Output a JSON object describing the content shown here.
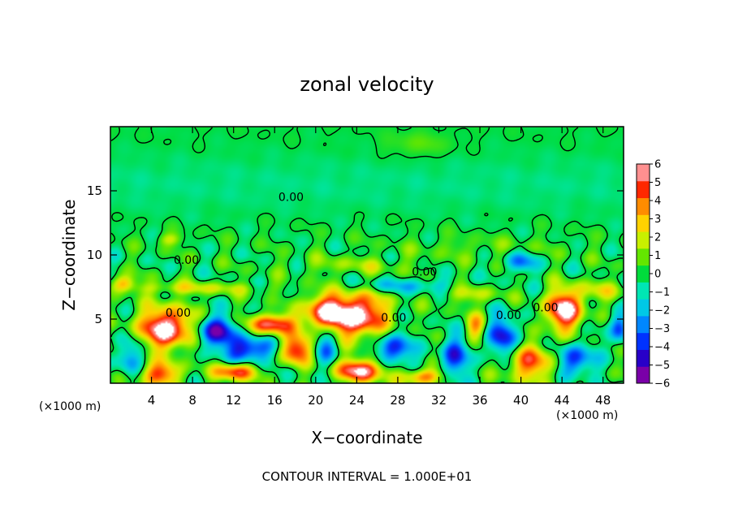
{
  "chart_data": {
    "type": "heatmap",
    "title": "zonal velocity",
    "xlabel": "X−coordinate",
    "ylabel": "Z−coordinate",
    "x_unit_label_left": "(×1000 m)",
    "x_unit_label_right": "(×1000 m)",
    "xlim": [
      0,
      50
    ],
    "ylim": [
      0,
      20
    ],
    "x_ticks": [
      4,
      8,
      12,
      16,
      20,
      24,
      28,
      32,
      36,
      40,
      44,
      48
    ],
    "x_tick_labels": [
      "4",
      "8",
      "12",
      "16",
      "20",
      "24",
      "28",
      "32",
      "36",
      "40",
      "44",
      "48"
    ],
    "y_ticks": [
      5,
      10,
      15
    ],
    "y_tick_labels": [
      "5",
      "10",
      "15"
    ],
    "colorbar": {
      "min": -6,
      "max": 6,
      "tick_values": [
        6,
        5,
        4,
        3,
        2,
        1,
        0,
        -1,
        -2,
        -3,
        -4,
        -5,
        -6
      ],
      "tick_labels": [
        "6",
        "5",
        "4",
        "3",
        "2",
        "1",
        "0",
        "−1",
        "−2",
        "−3",
        "−4",
        "−5",
        "−6"
      ],
      "colors": [
        "#7a00a8",
        "#2800c8",
        "#0032ff",
        "#0087ff",
        "#00c8e6",
        "#00e6b4",
        "#00dc3c",
        "#64e600",
        "#c8f000",
        "#ffd200",
        "#ff8c00",
        "#ff2800",
        "#ff9090"
      ]
    },
    "contour_labels": [
      {
        "text": "0.00",
        "x": 17.6,
        "y": 14.2
      },
      {
        "text": "0.00",
        "x": 7.4,
        "y": 9.3
      },
      {
        "text": "0.00",
        "x": 30.6,
        "y": 8.4
      },
      {
        "text": "0.00",
        "x": 6.6,
        "y": 5.2
      },
      {
        "text": "0.00",
        "x": 27.6,
        "y": 4.8
      },
      {
        "text": "0.00",
        "x": 38.8,
        "y": 5.0
      },
      {
        "text": "0.00",
        "x": 42.4,
        "y": 5.6
      }
    ],
    "features": [
      {
        "x": 5.5,
        "y": 4.3,
        "sx": 2.8,
        "sy": 1.6,
        "v": 7.0
      },
      {
        "x": 23.8,
        "y": 5.3,
        "sx": 3.0,
        "sy": 1.7,
        "v": 7.5
      },
      {
        "x": 20.6,
        "y": 5.5,
        "sx": 1.8,
        "sy": 1.4,
        "v": 4.5
      },
      {
        "x": 15.8,
        "y": 4.6,
        "sx": 2.2,
        "sy": 0.8,
        "v": 6.0
      },
      {
        "x": 18.2,
        "y": 2.6,
        "sx": 1.6,
        "sy": 1.1,
        "v": 5.5
      },
      {
        "x": 24.4,
        "y": 1.0,
        "sx": 2.4,
        "sy": 0.9,
        "v": 6.5
      },
      {
        "x": 12.2,
        "y": 0.9,
        "sx": 2.0,
        "sy": 0.7,
        "v": 5.5
      },
      {
        "x": 4.8,
        "y": 0.7,
        "sx": 2.0,
        "sy": 0.9,
        "v": 5.0
      },
      {
        "x": 30.5,
        "y": 0.5,
        "sx": 2.0,
        "sy": 0.6,
        "v": 4.5
      },
      {
        "x": 44.2,
        "y": 5.7,
        "sx": 1.8,
        "sy": 1.5,
        "v": 7.0
      },
      {
        "x": 41.0,
        "y": 1.6,
        "sx": 2.6,
        "sy": 1.4,
        "v": 4.5
      },
      {
        "x": 35.6,
        "y": 4.4,
        "sx": 1.0,
        "sy": 1.0,
        "v": 3.5
      },
      {
        "x": 10.2,
        "y": 4.0,
        "sx": 2.0,
        "sy": 1.2,
        "v": -5.5
      },
      {
        "x": 13.5,
        "y": 2.6,
        "sx": 2.2,
        "sy": 1.0,
        "v": -5.0
      },
      {
        "x": 21.0,
        "y": 3.1,
        "sx": 1.2,
        "sy": 1.6,
        "v": -3.5
      },
      {
        "x": 27.6,
        "y": 2.6,
        "sx": 1.8,
        "sy": 1.2,
        "v": -4.5
      },
      {
        "x": 33.6,
        "y": 2.0,
        "sx": 1.4,
        "sy": 1.6,
        "v": -4.0
      },
      {
        "x": 38.2,
        "y": 3.6,
        "sx": 1.5,
        "sy": 1.6,
        "v": -4.5
      },
      {
        "x": 45.2,
        "y": 1.8,
        "sx": 1.8,
        "sy": 1.2,
        "v": -4.5
      },
      {
        "x": 49.6,
        "y": 4.3,
        "sx": 0.9,
        "sy": 1.2,
        "v": -4.0
      },
      {
        "x": 40.0,
        "y": 9.4,
        "sx": 1.6,
        "sy": 0.8,
        "v": -3.0
      },
      {
        "x": 29.0,
        "y": 7.6,
        "sx": 6.0,
        "sy": 0.6,
        "v": -2.0
      },
      {
        "x": 1.8,
        "y": 2.0,
        "sx": 1.2,
        "sy": 1.5,
        "v": -3.0
      },
      {
        "x": 8.0,
        "y": 7.4,
        "sx": 7.0,
        "sy": 0.5,
        "v": 2.0
      },
      {
        "x": 24.0,
        "y": 9.2,
        "sx": 6.0,
        "sy": 0.7,
        "v": 1.3
      },
      {
        "x": 5.8,
        "y": 11.2,
        "sx": 1.2,
        "sy": 0.5,
        "v": 2.0
      },
      {
        "x": 35.0,
        "y": 7.0,
        "sx": 3.0,
        "sy": 0.8,
        "v": 2.0
      },
      {
        "x": 47.5,
        "y": 7.2,
        "sx": 2.5,
        "sy": 0.8,
        "v": 2.0
      },
      {
        "x": 36.0,
        "y": 10.6,
        "sx": 8.0,
        "sy": 0.8,
        "v": 0.8
      },
      {
        "x": 1.2,
        "y": 7.8,
        "sx": 1.2,
        "sy": 0.6,
        "v": 3.2
      }
    ],
    "note": "CONTOUR INTERVAL = 1.000E+01"
  }
}
